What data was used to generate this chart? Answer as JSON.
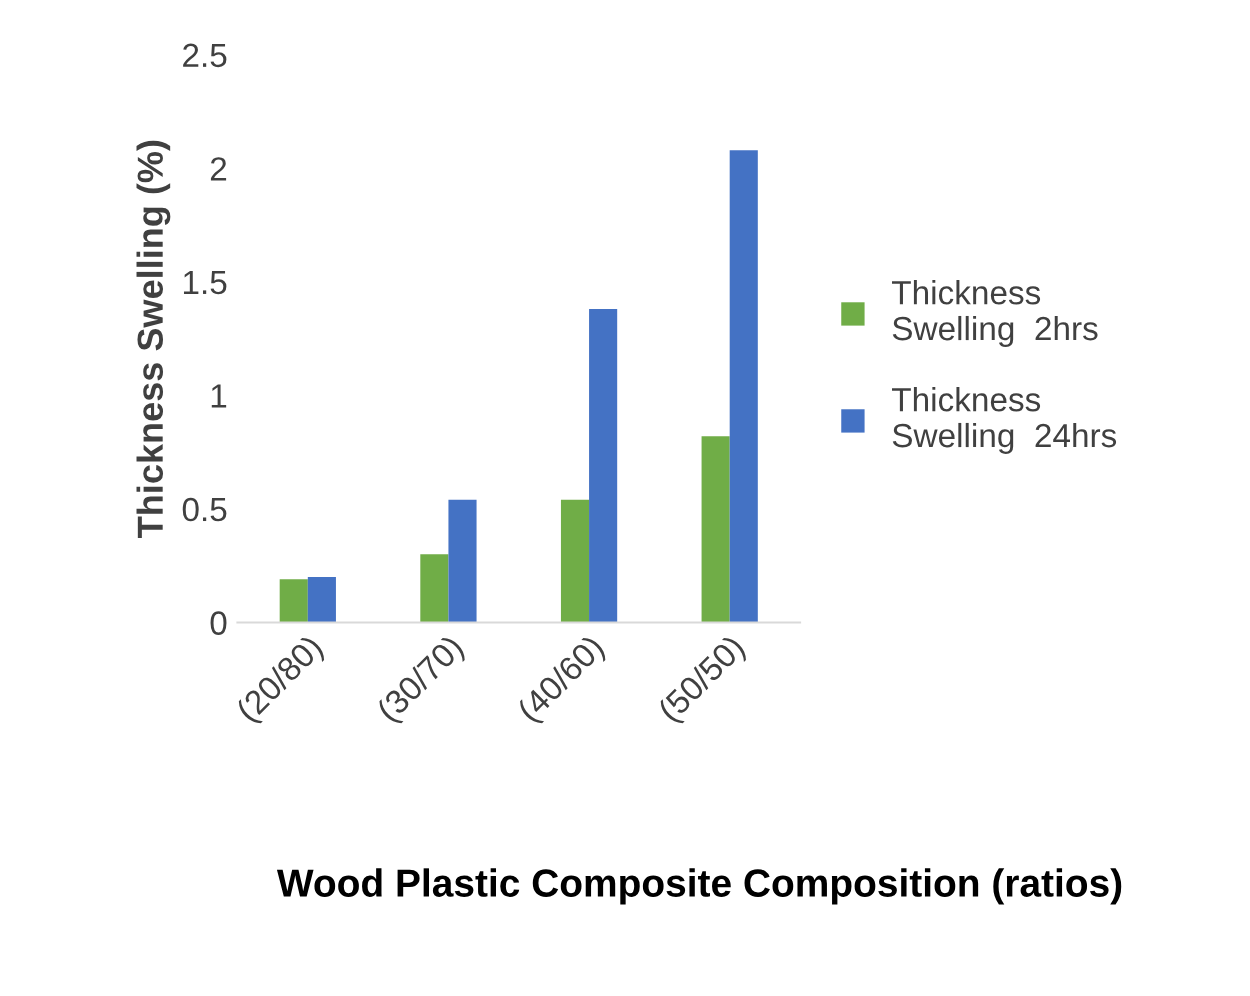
{
  "chart_data": {
    "type": "bar",
    "xlabel": "Wood Plastic Composite Composition (ratios)",
    "ylabel": "Thickness Swelling (%)",
    "categories": [
      "(20/80)",
      "(30/70)",
      "(40/60)",
      "(50/50)"
    ],
    "series": [
      {
        "name": "Thickness Swelling  2hrs",
        "color": "#70ad47",
        "values": [
          0.19,
          0.3,
          0.54,
          0.82
        ]
      },
      {
        "name": "Thickness Swelling  24hrs",
        "color": "#4472c4",
        "values": [
          0.2,
          0.54,
          1.38,
          2.08
        ]
      }
    ],
    "ylim": [
      0,
      2.5
    ],
    "yticks": [
      0,
      0.5,
      1,
      1.5,
      2,
      2.5
    ],
    "grid": false,
    "legend": "right"
  }
}
